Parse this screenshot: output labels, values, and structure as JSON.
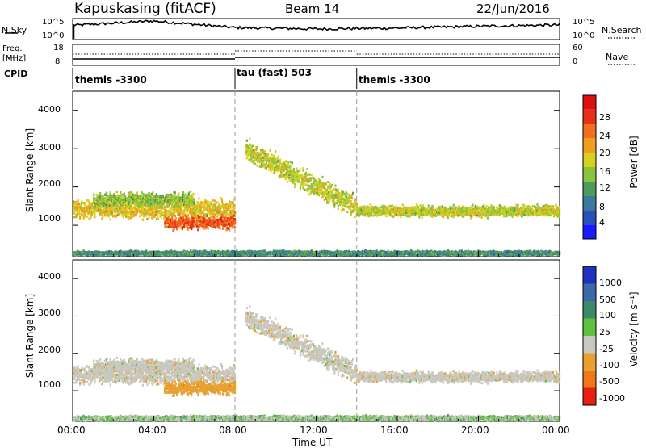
{
  "header": {
    "station": "Kapuskasing (fitACF)",
    "beam": "Beam 14",
    "date": "22/Jun/2016"
  },
  "top_panels": {
    "nsky_label": "N.Sky",
    "nsky_ticks": [
      "10^5",
      "10^0"
    ],
    "nsearch_label": "N.Search",
    "freq_label_1": "Freq.",
    "freq_label_2": "[MHz]",
    "freq_ticks": [
      "18",
      "8"
    ],
    "nave_label": "Nave",
    "nave_ticks": [
      "60",
      "0"
    ],
    "cpid_label": "CPID",
    "cpid_segments": [
      {
        "label": "themis -3300",
        "start_hour": 0
      },
      {
        "label": "tau (fast) 503",
        "start_hour": 8
      },
      {
        "label": "themis -3300",
        "start_hour": 14
      }
    ]
  },
  "time_axis": {
    "label": "Time UT",
    "ticks": [
      "00:00",
      "04:00",
      "08:00",
      "12:00",
      "16:00",
      "20:00",
      "00:00"
    ]
  },
  "power_panel": {
    "ylabel": "Slant Range [km]",
    "yticks": [
      "1000",
      "2000",
      "3000",
      "4000"
    ],
    "colorbar_label": "Power [dB]",
    "colorbar_ticks": [
      "4",
      "8",
      "12",
      "16",
      "20",
      "24",
      "28"
    ],
    "colors": [
      "#1a1aff",
      "#2a50b8",
      "#3c7a9a",
      "#4d9a5a",
      "#8ac43a",
      "#d8d020",
      "#f0a020",
      "#f07020",
      "#e83018",
      "#e01010"
    ]
  },
  "velocity_panel": {
    "ylabel": "Slant Range [km]",
    "yticks": [
      "1000",
      "2000",
      "3000",
      "4000"
    ],
    "colorbar_label": "Velocity [m s⁻¹]",
    "colorbar_ticks": [
      "1000",
      "500",
      "100",
      "25",
      "-25",
      "-100",
      "-500",
      "-1000"
    ],
    "colors": [
      "#2030c0",
      "#3c6aa8",
      "#3c8a6a",
      "#60c040",
      "#c8c8c0",
      "#e8a030",
      "#f07818",
      "#e82010"
    ]
  },
  "chart_data": {
    "type": "heatmap",
    "title": "Kapuskasing (fitACF) Beam 14 22/Jun/2016",
    "xlabel": "Time UT",
    "ylabel": "Slant Range [km]",
    "xlim": [
      0,
      24
    ],
    "ylim": [
      180,
      4500
    ],
    "scatter_bands": [
      {
        "name": "band_lower",
        "t_start": 0,
        "t_end": 8,
        "range_center": 1450,
        "range_spread": 350,
        "power_db": 18,
        "velocity": -25
      },
      {
        "name": "band_upper_early",
        "t_start": 1,
        "t_end": 6,
        "range_center": 1700,
        "range_spread": 250,
        "power_db": 14,
        "velocity": -25
      },
      {
        "name": "band_pre_midday",
        "t_start": 4.5,
        "t_end": 8,
        "range_center": 1100,
        "range_spread": 250,
        "power_db": 24,
        "velocity": -200
      },
      {
        "name": "band_arc",
        "t_start": 8.5,
        "t_end": 14,
        "range_center": 1900,
        "range_spread": 400,
        "power_db": 16,
        "velocity": -25
      },
      {
        "name": "band_afternoon",
        "t_start": 14,
        "t_end": 24,
        "range_center": 1400,
        "range_spread": 200,
        "power_db": 16,
        "velocity": -25
      },
      {
        "name": "near_range_echo",
        "t_start": 0,
        "t_end": 24,
        "range_center": 300,
        "range_spread": 80,
        "power_db": 10,
        "velocity": 25
      }
    ],
    "nsky_level": [
      3,
      4,
      2.5,
      2.2,
      2.4,
      2.8,
      3.1
    ],
    "freq_mhz": [
      10,
      10,
      11,
      11,
      11,
      11,
      11
    ],
    "nave": [
      18,
      18,
      20,
      20,
      20,
      20,
      20
    ]
  }
}
